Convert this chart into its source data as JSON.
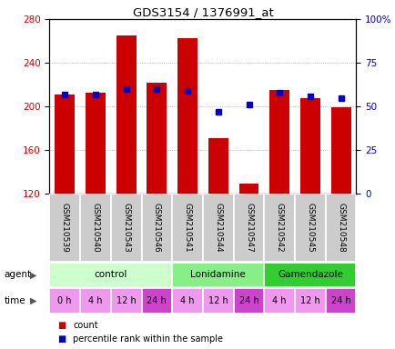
{
  "title": "GDS3154 / 1376991_at",
  "samples": [
    "GSM210539",
    "GSM210540",
    "GSM210543",
    "GSM210546",
    "GSM210541",
    "GSM210544",
    "GSM210547",
    "GSM210542",
    "GSM210545",
    "GSM210548"
  ],
  "counts": [
    211,
    213,
    265,
    222,
    263,
    171,
    129,
    215,
    208,
    199
  ],
  "percentiles": [
    57,
    57,
    60,
    60,
    59,
    47,
    51,
    58,
    56,
    55
  ],
  "ylim_left": [
    120,
    280
  ],
  "ylim_right": [
    0,
    100
  ],
  "yticks_left": [
    120,
    160,
    200,
    240,
    280
  ],
  "yticks_right": [
    0,
    25,
    50,
    75,
    100
  ],
  "bar_color": "#cc0000",
  "dot_color": "#0000cc",
  "agent_groups": [
    {
      "label": "control",
      "start": 0,
      "end": 3,
      "color": "#ccffcc"
    },
    {
      "label": "Lonidamine",
      "start": 4,
      "end": 6,
      "color": "#88ee88"
    },
    {
      "label": "Gamendazole",
      "start": 7,
      "end": 9,
      "color": "#33cc33"
    }
  ],
  "time_labels": [
    "0 h",
    "4 h",
    "12 h",
    "24 h",
    "4 h",
    "12 h",
    "24 h",
    "4 h",
    "12 h",
    "24 h"
  ],
  "time_colors": [
    "#ee99ee",
    "#ee99ee",
    "#ee99ee",
    "#cc44cc",
    "#ee99ee",
    "#ee99ee",
    "#cc44cc",
    "#ee99ee",
    "#ee99ee",
    "#cc44cc"
  ],
  "sample_bg": "#cccccc",
  "agent_label": "agent",
  "time_label": "time",
  "legend_count_color": "#cc0000",
  "legend_dot_color": "#0000cc"
}
